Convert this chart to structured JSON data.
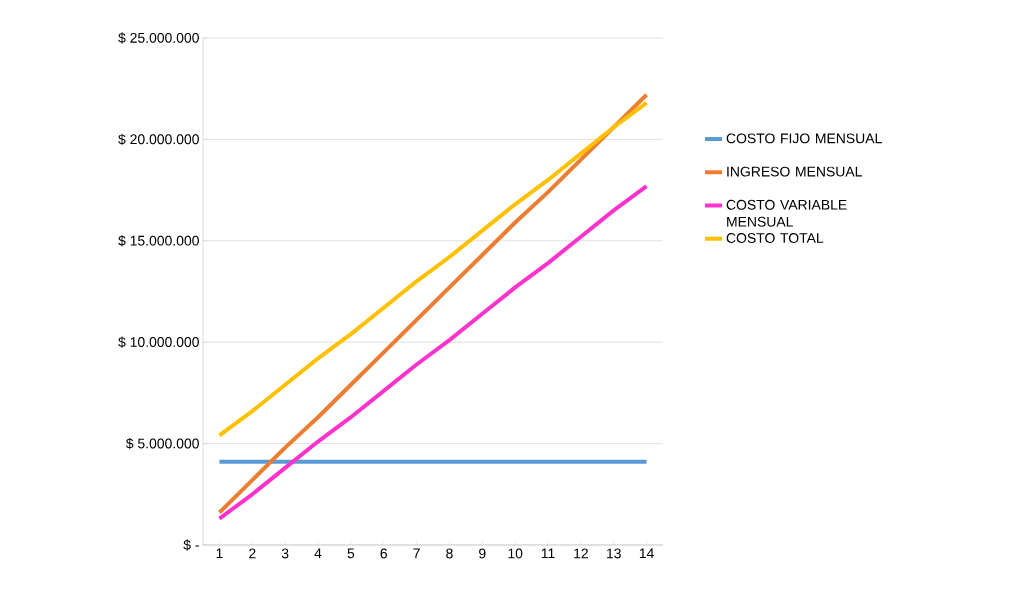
{
  "chart_data": {
    "type": "line",
    "categories": [
      "1",
      "2",
      "3",
      "4",
      "5",
      "6",
      "7",
      "8",
      "9",
      "10",
      "11",
      "12",
      "13",
      "14"
    ],
    "series": [
      {
        "name": "COSTO FIJO MENSUAL",
        "color": "#5b9bd5",
        "values": [
          4100000,
          4100000,
          4100000,
          4100000,
          4100000,
          4100000,
          4100000,
          4100000,
          4100000,
          4100000,
          4100000,
          4100000,
          4100000,
          4100000
        ]
      },
      {
        "name": "INGRESO MENSUAL",
        "color": "#ed7d31",
        "values": [
          1600000,
          3200000,
          4800000,
          6300000,
          7900000,
          9500000,
          11100000,
          12700000,
          14300000,
          15900000,
          17400000,
          19000000,
          20600000,
          22200000
        ]
      },
      {
        "name": "COSTO VARIABLE MENSUAL",
        "color": "#ff33cc",
        "values": [
          1300000,
          2500000,
          3800000,
          5100000,
          6300000,
          7600000,
          8900000,
          10100000,
          11400000,
          12700000,
          13900000,
          15200000,
          16500000,
          17700000
        ]
      },
      {
        "name": "COSTO TOTAL",
        "color": "#ffc000",
        "values": [
          5400000,
          6600000,
          7900000,
          9200000,
          10400000,
          11700000,
          13000000,
          14200000,
          15500000,
          16800000,
          18000000,
          19300000,
          20600000,
          21800000
        ]
      }
    ],
    "ylim": [
      0,
      25000000
    ],
    "yticks": [
      {
        "value": 0,
        "label": "$ -"
      },
      {
        "value": 5000000,
        "label": "$ 5.000.000"
      },
      {
        "value": 10000000,
        "label": "$ 10.000.000"
      },
      {
        "value": 15000000,
        "label": "$ 15.000.000"
      },
      {
        "value": 20000000,
        "label": "$ 20.000.000"
      },
      {
        "value": 25000000,
        "label": "$ 25.000.000"
      }
    ],
    "grid": "y",
    "legend": "right",
    "marker": "none",
    "line_style": "solid"
  }
}
